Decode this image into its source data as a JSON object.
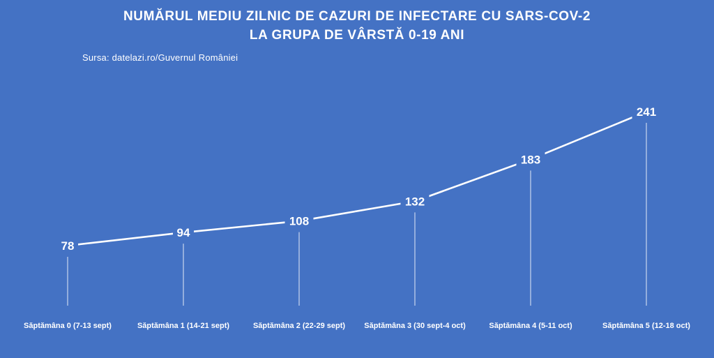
{
  "title_line1": "NUMĂRUL MEDIU ZILNIC DE CAZURI DE INFECTARE CU SARS-COV-2",
  "title_line2": "LA GRUPA DE VÂRSTĂ 0-19 ANI",
  "source": "Sursa: datelazi.ro/Guvernul României",
  "colors": {
    "background": "#4472c4",
    "line": "#ffffff",
    "text": "#ffffff"
  },
  "chart_data": {
    "type": "line",
    "title": "NUMĂRUL MEDIU ZILNIC DE CAZURI DE INFECTARE CU SARS-COV-2 LA GRUPA DE VÂRSTĂ 0-19 ANI",
    "categories": [
      "Săptămâna 0 (7-13 sept)",
      "Săptămâna 1 (14-21 sept)",
      "Săptămâna 2 (22-29 sept)",
      "Săptămâna 3 (30 sept-4 oct)",
      "Săptămâna 4 (5-11 oct)",
      "Săptămâna 5 (12-18 oct)"
    ],
    "values": [
      78,
      94,
      108,
      132,
      183,
      241
    ],
    "data_labels": [
      "78",
      "94",
      "108",
      "132",
      "183",
      "241"
    ],
    "xlabel": "",
    "ylabel": "",
    "grid": false,
    "legend": "none"
  }
}
